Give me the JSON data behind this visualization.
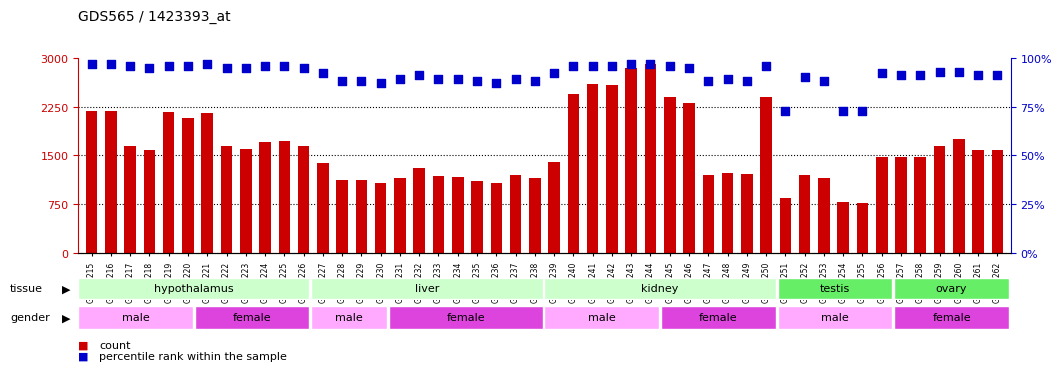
{
  "title": "GDS565 / 1423393_at",
  "samples": [
    "GSM19215",
    "GSM19216",
    "GSM19217",
    "GSM19218",
    "GSM19219",
    "GSM19220",
    "GSM19221",
    "GSM19222",
    "GSM19223",
    "GSM19224",
    "GSM19225",
    "GSM19226",
    "GSM19227",
    "GSM19228",
    "GSM19229",
    "GSM19230",
    "GSM19231",
    "GSM19232",
    "GSM19233",
    "GSM19234",
    "GSM19235",
    "GSM19236",
    "GSM19237",
    "GSM19238",
    "GSM19239",
    "GSM19240",
    "GSM19241",
    "GSM19242",
    "GSM19243",
    "GSM19244",
    "GSM19245",
    "GSM19246",
    "GSM19247",
    "GSM19248",
    "GSM19249",
    "GSM19250",
    "GSM19251",
    "GSM19252",
    "GSM19253",
    "GSM19254",
    "GSM19255",
    "GSM19256",
    "GSM19257",
    "GSM19258",
    "GSM19259",
    "GSM19260",
    "GSM19261",
    "GSM19262"
  ],
  "counts": [
    2180,
    2190,
    1650,
    1580,
    2160,
    2080,
    2150,
    1640,
    1600,
    1700,
    1720,
    1650,
    1380,
    1120,
    1120,
    1080,
    1150,
    1300,
    1180,
    1170,
    1100,
    1080,
    1200,
    1150,
    1400,
    2450,
    2600,
    2580,
    2850,
    2900,
    2400,
    2300,
    1200,
    1230,
    1210,
    2400,
    850,
    1200,
    1150,
    780,
    760,
    1480,
    1480,
    1480,
    1650,
    1750,
    1590,
    1580
  ],
  "percentile_ranks": [
    97,
    97,
    96,
    95,
    96,
    96,
    97,
    95,
    95,
    96,
    96,
    95,
    92,
    88,
    88,
    87,
    89,
    91,
    89,
    89,
    88,
    87,
    89,
    88,
    92,
    96,
    96,
    96,
    97,
    97,
    96,
    95,
    88,
    89,
    88,
    96,
    73,
    90,
    88,
    73,
    73,
    92,
    91,
    91,
    93,
    93,
    91,
    91
  ],
  "bar_color": "#cc0000",
  "dot_color": "#0000cc",
  "ylim_left": [
    0,
    3000
  ],
  "ylim_right": [
    0,
    100
  ],
  "yticks_left": [
    0,
    750,
    1500,
    2250,
    3000
  ],
  "yticks_right": [
    0,
    25,
    50,
    75,
    100
  ],
  "tissue_groups": [
    {
      "label": "hypothalamus",
      "start": 0,
      "end": 11,
      "color": "#ccffcc"
    },
    {
      "label": "liver",
      "start": 12,
      "end": 23,
      "color": "#ccffcc"
    },
    {
      "label": "kidney",
      "start": 24,
      "end": 35,
      "color": "#ccffcc"
    },
    {
      "label": "testis",
      "start": 36,
      "end": 41,
      "color": "#66ee66"
    },
    {
      "label": "ovary",
      "start": 42,
      "end": 47,
      "color": "#66ee66"
    }
  ],
  "gender_groups": [
    {
      "label": "male",
      "start": 0,
      "end": 5,
      "color": "#ffaaff"
    },
    {
      "label": "female",
      "start": 6,
      "end": 11,
      "color": "#dd44dd"
    },
    {
      "label": "male",
      "start": 12,
      "end": 15,
      "color": "#ffaaff"
    },
    {
      "label": "female",
      "start": 16,
      "end": 23,
      "color": "#dd44dd"
    },
    {
      "label": "male",
      "start": 24,
      "end": 29,
      "color": "#ffaaff"
    },
    {
      "label": "female",
      "start": 30,
      "end": 35,
      "color": "#dd44dd"
    },
    {
      "label": "male",
      "start": 36,
      "end": 41,
      "color": "#ffaaff"
    },
    {
      "label": "female",
      "start": 42,
      "end": 47,
      "color": "#dd44dd"
    }
  ],
  "legend_count_color": "#cc0000",
  "legend_dot_color": "#0000cc",
  "bg_color": "#ffffff",
  "grid_color": "#000000",
  "axis_color_left": "#cc0000",
  "axis_color_right": "#0000cc"
}
